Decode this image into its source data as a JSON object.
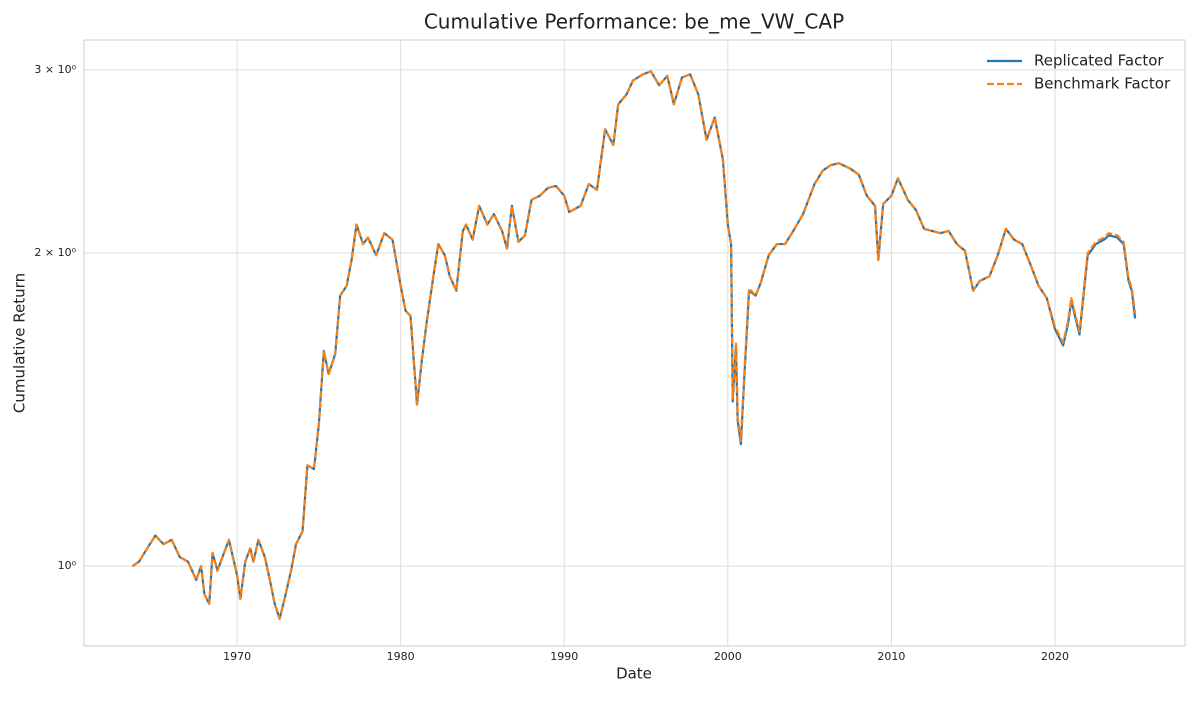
{
  "chart_data": {
    "type": "line",
    "title": "Cumulative Performance: be_me_VW_CAP",
    "xlabel": "Date",
    "ylabel": "Cumulative Return",
    "log_y": true,
    "grid": true,
    "legend": "upper right",
    "xlim": [
      1960.64,
      2027.95
    ],
    "xticks": [
      1970,
      1980,
      1990,
      2000,
      2010,
      2020
    ],
    "ylim": [
      0.838,
      3.205
    ],
    "yticks": [
      {
        "value": 1,
        "label": "10⁰"
      },
      {
        "value": 2,
        "label": "2 × 10⁰"
      },
      {
        "value": 3,
        "label": "3 × 10⁰"
      }
    ],
    "x": [
      1963.6,
      1964.0,
      1964.5,
      1965.0,
      1965.5,
      1966.0,
      1966.5,
      1967.0,
      1967.5,
      1967.8,
      1968.0,
      1968.3,
      1968.5,
      1968.8,
      1969.0,
      1969.5,
      1970.0,
      1970.2,
      1970.5,
      1970.8,
      1971.0,
      1971.3,
      1971.7,
      1972.0,
      1972.3,
      1972.6,
      1972.9,
      1973.3,
      1973.6,
      1974.0,
      1974.3,
      1974.7,
      1975.0,
      1975.3,
      1975.6,
      1976.0,
      1976.3,
      1976.7,
      1977.0,
      1977.3,
      1977.7,
      1978.0,
      1978.5,
      1979.0,
      1979.5,
      1980.0,
      1980.3,
      1980.6,
      1981.0,
      1981.3,
      1981.6,
      1982.0,
      1982.3,
      1982.7,
      1983.0,
      1983.4,
      1983.8,
      1984.0,
      1984.4,
      1984.8,
      1985.3,
      1985.7,
      1986.2,
      1986.5,
      1986.8,
      1987.2,
      1987.6,
      1988.0,
      1988.5,
      1989.0,
      1989.5,
      1990.0,
      1990.3,
      1991.0,
      1991.5,
      1992.0,
      1992.5,
      1993.0,
      1993.3,
      1993.8,
      1994.2,
      1994.8,
      1995.3,
      1995.8,
      1996.3,
      1996.7,
      1997.2,
      1997.7,
      1998.2,
      1998.7,
      1999.2,
      1999.7,
      2000.0,
      2000.2,
      2000.3,
      2000.5,
      2000.6,
      2000.8,
      2001.0,
      2001.3,
      2001.7,
      2002.0,
      2002.5,
      2003.0,
      2003.5,
      2004.0,
      2004.6,
      2005.3,
      2005.8,
      2006.3,
      2006.8,
      2007.5,
      2008.0,
      2008.5,
      2009.0,
      2009.2,
      2009.5,
      2010.0,
      2010.4,
      2011.0,
      2011.5,
      2012.0,
      2013.0,
      2013.5,
      2014.0,
      2014.5,
      2015.0,
      2015.4,
      2016.0,
      2016.5,
      2017.0,
      2017.5,
      2018.0,
      2018.5,
      2019.0,
      2019.5,
      2020.0,
      2020.5,
      2020.8,
      2021.0,
      2021.5,
      2022.0,
      2022.5,
      2023.0,
      2023.3,
      2023.8,
      2024.2,
      2024.5,
      2024.7,
      2024.9
    ],
    "series": [
      {
        "name": "Replicated Factor",
        "color": "#1f77b4",
        "linestyle": "solid",
        "values": [
          1.0,
          1.01,
          1.04,
          1.07,
          1.05,
          1.06,
          1.02,
          1.01,
          0.97,
          1.0,
          0.94,
          0.92,
          1.03,
          0.99,
          1.01,
          1.06,
          0.98,
          0.93,
          1.01,
          1.04,
          1.01,
          1.06,
          1.02,
          0.97,
          0.92,
          0.89,
          0.93,
          0.99,
          1.05,
          1.08,
          1.25,
          1.24,
          1.37,
          1.61,
          1.53,
          1.6,
          1.82,
          1.86,
          1.97,
          2.13,
          2.04,
          2.07,
          1.99,
          2.09,
          2.06,
          1.86,
          1.76,
          1.74,
          1.43,
          1.58,
          1.72,
          1.9,
          2.04,
          1.99,
          1.9,
          1.84,
          2.1,
          2.13,
          2.06,
          2.22,
          2.13,
          2.18,
          2.1,
          2.02,
          2.22,
          2.05,
          2.08,
          2.25,
          2.27,
          2.31,
          2.32,
          2.27,
          2.19,
          2.22,
          2.33,
          2.3,
          2.63,
          2.54,
          2.78,
          2.84,
          2.93,
          2.97,
          2.99,
          2.9,
          2.96,
          2.78,
          2.95,
          2.97,
          2.84,
          2.57,
          2.7,
          2.46,
          2.13,
          2.04,
          1.44,
          1.63,
          1.38,
          1.31,
          1.51,
          1.84,
          1.82,
          1.87,
          1.99,
          2.04,
          2.04,
          2.1,
          2.18,
          2.33,
          2.4,
          2.43,
          2.44,
          2.41,
          2.38,
          2.27,
          2.22,
          1.97,
          2.23,
          2.27,
          2.36,
          2.25,
          2.2,
          2.11,
          2.09,
          2.1,
          2.04,
          2.01,
          1.84,
          1.88,
          1.9,
          1.99,
          2.11,
          2.06,
          2.04,
          1.95,
          1.86,
          1.81,
          1.69,
          1.63,
          1.71,
          1.8,
          1.67,
          1.99,
          2.04,
          2.06,
          2.08,
          2.07,
          2.04,
          1.88,
          1.84,
          1.73
        ]
      },
      {
        "name": "Benchmark Factor",
        "color": "#ff7f0e",
        "linestyle": "dashed",
        "values": [
          1.0,
          1.01,
          1.04,
          1.07,
          1.05,
          1.06,
          1.02,
          1.01,
          0.97,
          1.0,
          0.94,
          0.92,
          1.03,
          0.99,
          1.01,
          1.06,
          0.98,
          0.93,
          1.01,
          1.04,
          1.01,
          1.06,
          1.02,
          0.97,
          0.92,
          0.89,
          0.93,
          0.99,
          1.05,
          1.08,
          1.25,
          1.24,
          1.37,
          1.61,
          1.53,
          1.6,
          1.82,
          1.86,
          1.97,
          2.13,
          2.04,
          2.07,
          1.99,
          2.09,
          2.06,
          1.86,
          1.76,
          1.74,
          1.43,
          1.58,
          1.72,
          1.9,
          2.04,
          1.99,
          1.9,
          1.84,
          2.1,
          2.13,
          2.06,
          2.22,
          2.13,
          2.18,
          2.1,
          2.02,
          2.22,
          2.05,
          2.08,
          2.25,
          2.27,
          2.31,
          2.32,
          2.27,
          2.19,
          2.22,
          2.33,
          2.3,
          2.63,
          2.54,
          2.78,
          2.84,
          2.93,
          2.97,
          2.99,
          2.9,
          2.96,
          2.78,
          2.95,
          2.97,
          2.84,
          2.57,
          2.7,
          2.46,
          2.13,
          2.04,
          1.45,
          1.64,
          1.39,
          1.32,
          1.52,
          1.85,
          1.82,
          1.87,
          1.99,
          2.04,
          2.04,
          2.1,
          2.18,
          2.33,
          2.4,
          2.43,
          2.44,
          2.41,
          2.38,
          2.27,
          2.22,
          1.97,
          2.23,
          2.27,
          2.36,
          2.25,
          2.2,
          2.11,
          2.09,
          2.1,
          2.04,
          2.01,
          1.84,
          1.88,
          1.9,
          1.99,
          2.11,
          2.06,
          2.04,
          1.95,
          1.86,
          1.81,
          1.7,
          1.64,
          1.72,
          1.81,
          1.68,
          2.0,
          2.05,
          2.07,
          2.09,
          2.08,
          2.05,
          1.89,
          1.85,
          1.75
        ]
      }
    ]
  }
}
